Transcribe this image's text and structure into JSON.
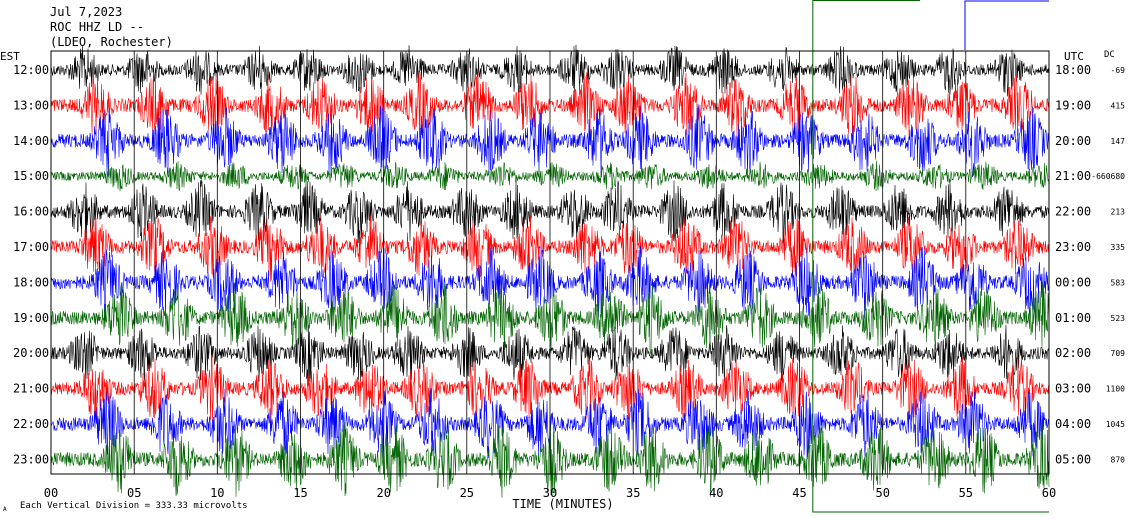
{
  "header": {
    "date": "Jul 7,2023",
    "station": "ROC HHZ LD --",
    "location": "(LDEO, Rochester)"
  },
  "footer": {
    "scale_note": "Each Vertical Division = 333.33 microvolts",
    "corner_mark": "A"
  },
  "colors": {
    "black": "#000000",
    "red": "#ff0000",
    "blue": "#0000ff",
    "green": "#006400",
    "event_box": "#006400"
  },
  "chart_data": {
    "type": "line",
    "title": "Jul 7,2023 ROC HHZ LD -- (LDEO, Rochester)",
    "xlabel": "TIME (MINUTES)",
    "x_range": [
      0,
      60
    ],
    "x_ticks": [
      "00",
      "05",
      "10",
      "15",
      "20",
      "25",
      "30",
      "35",
      "40",
      "45",
      "50",
      "55",
      "60"
    ],
    "left_axis_label": "EST",
    "right_axis_label": "UTC",
    "dc_label": "DC",
    "grid": "vertical lines every 5 minutes",
    "rows": [
      {
        "est": "12:00",
        "utc": "18:00",
        "dc": "-69",
        "color": "black",
        "amplitude": 0.55
      },
      {
        "est": "13:00",
        "utc": "19:00",
        "dc": "415",
        "color": "red",
        "amplitude": 0.75
      },
      {
        "est": "14:00",
        "utc": "20:00",
        "dc": "147",
        "color": "blue",
        "amplitude": 0.8
      },
      {
        "est": "15:00",
        "utc": "21:00",
        "dc": "-660680",
        "color": "green",
        "amplitude": 0.3
      },
      {
        "est": "16:00",
        "utc": "22:00",
        "dc": "213",
        "color": "black",
        "amplitude": 0.7
      },
      {
        "est": "17:00",
        "utc": "23:00",
        "dc": "335",
        "color": "red",
        "amplitude": 0.75
      },
      {
        "est": "18:00",
        "utc": "00:00",
        "dc": "583",
        "color": "blue",
        "amplitude": 0.8
      },
      {
        "est": "19:00",
        "utc": "01:00",
        "dc": "523",
        "color": "green",
        "amplitude": 0.8
      },
      {
        "est": "20:00",
        "utc": "02:00",
        "dc": "709",
        "color": "black",
        "amplitude": 0.65
      },
      {
        "est": "21:00",
        "utc": "03:00",
        "dc": "1100",
        "color": "red",
        "amplitude": 0.75
      },
      {
        "est": "22:00",
        "utc": "04:00",
        "dc": "1045",
        "color": "blue",
        "amplitude": 0.8
      },
      {
        "est": "23:00",
        "utc": "05:00",
        "dc": "870",
        "color": "green",
        "amplitude": 0.85
      }
    ]
  }
}
